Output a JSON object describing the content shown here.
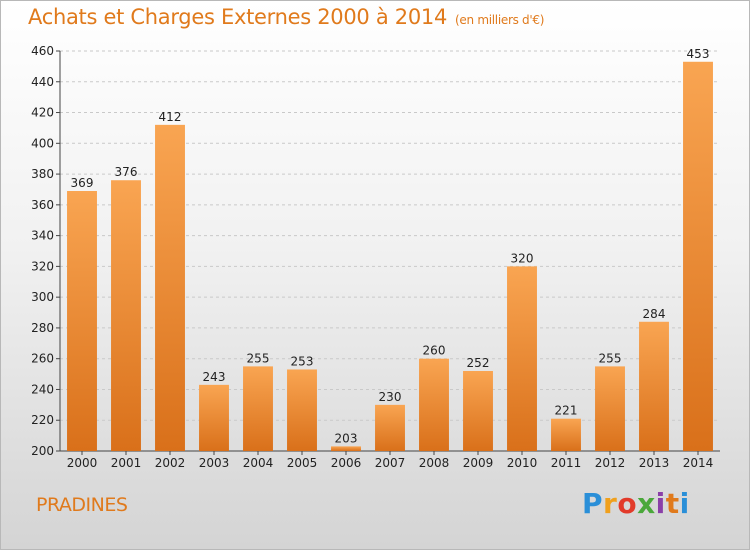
{
  "header": {
    "title": "Achats et Charges Externes 2000 à 2014",
    "unit": "(en milliers d'€)"
  },
  "footer": {
    "city": "PRADINES",
    "logo": "Proxiti"
  },
  "colors": {
    "bar_light": "#f9a552",
    "bar_dark": "#d9701a",
    "accent": "#e07a1c"
  },
  "chart_data": {
    "type": "bar",
    "title": "Achats et Charges Externes 2000 à 2014",
    "subtitle": "(en milliers d'€)",
    "xlabel": "",
    "ylabel": "",
    "ylim": [
      200,
      460
    ],
    "yticks": [
      200,
      220,
      240,
      260,
      280,
      300,
      320,
      340,
      360,
      380,
      400,
      420,
      440,
      460
    ],
    "grid": true,
    "categories": [
      "2000",
      "2001",
      "2002",
      "2003",
      "2004",
      "2005",
      "2006",
      "2007",
      "2008",
      "2009",
      "2010",
      "2011",
      "2012",
      "2013",
      "2014"
    ],
    "values": [
      369,
      376,
      412,
      243,
      255,
      253,
      203,
      230,
      260,
      252,
      320,
      221,
      255,
      284,
      453
    ]
  }
}
